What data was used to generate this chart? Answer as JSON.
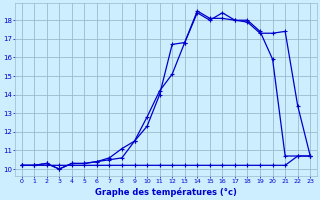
{
  "xlabel": "Graphe des températures (°c)",
  "bg_color": "#cceeff",
  "line_color": "#0000cc",
  "grid_color": "#99bbcc",
  "x_ticks": [
    0,
    1,
    2,
    3,
    4,
    5,
    6,
    7,
    8,
    9,
    10,
    11,
    12,
    13,
    14,
    15,
    16,
    17,
    18,
    19,
    20,
    21,
    22,
    23
  ],
  "y_ticks": [
    10,
    11,
    12,
    13,
    14,
    15,
    16,
    17,
    18
  ],
  "ylim": [
    9.6,
    18.9
  ],
  "xlim": [
    -0.5,
    23.5
  ],
  "line1_x": [
    0,
    1,
    2,
    3,
    4,
    5,
    6,
    7,
    8,
    9,
    10,
    11,
    12,
    13,
    14,
    15,
    16,
    17,
    18,
    19,
    20,
    21,
    22,
    23
  ],
  "line1_y": [
    10.2,
    10.2,
    10.3,
    10.0,
    10.3,
    10.3,
    10.4,
    10.5,
    10.6,
    11.5,
    12.3,
    14.0,
    16.7,
    16.8,
    18.4,
    18.0,
    18.4,
    18.0,
    18.0,
    17.4,
    15.9,
    10.7,
    10.7,
    10.7
  ],
  "line2_x": [
    0,
    1,
    2,
    3,
    4,
    5,
    6,
    7,
    8,
    9,
    10,
    11,
    12,
    13,
    14,
    15,
    16,
    17,
    18,
    19,
    20,
    21,
    22,
    23
  ],
  "line2_y": [
    10.2,
    10.2,
    10.3,
    10.0,
    10.3,
    10.3,
    10.4,
    10.6,
    11.1,
    11.5,
    12.8,
    14.2,
    15.1,
    16.8,
    18.5,
    18.1,
    18.1,
    18.0,
    17.9,
    17.3,
    17.3,
    17.4,
    13.4,
    10.7
  ],
  "line3_x": [
    0,
    1,
    2,
    3,
    4,
    5,
    6,
    7,
    8,
    9,
    10,
    11,
    12,
    13,
    14,
    15,
    16,
    17,
    18,
    19,
    20,
    21,
    22,
    23
  ],
  "line3_y": [
    10.2,
    10.2,
    10.2,
    10.2,
    10.2,
    10.2,
    10.2,
    10.2,
    10.2,
    10.2,
    10.2,
    10.2,
    10.2,
    10.2,
    10.2,
    10.2,
    10.2,
    10.2,
    10.2,
    10.2,
    10.2,
    10.2,
    10.7,
    10.7
  ]
}
